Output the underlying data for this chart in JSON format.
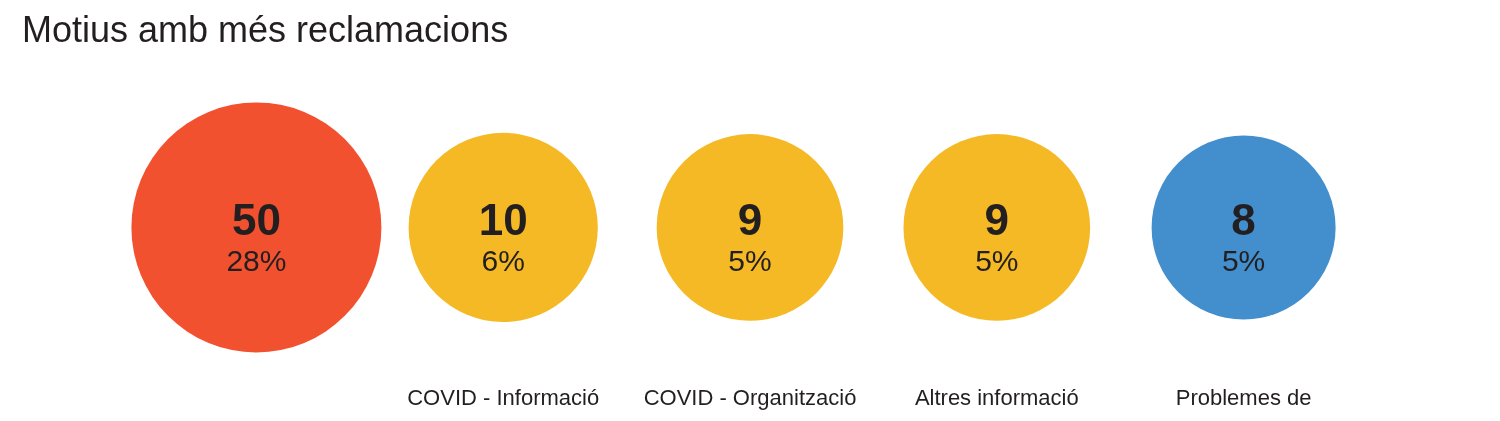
{
  "chart_data": {
    "type": "other",
    "title": "Motius amb més reclamacions",
    "categories": [
      null,
      "COVID - Informació",
      "COVID - Organització",
      "Altres informació",
      "Problemes de"
    ],
    "values": [
      50,
      10,
      9,
      9,
      8
    ],
    "colors": [
      "#f2512f",
      "#f5b926",
      "#f5b926",
      "#f5b926",
      "#438fcd"
    ],
    "data_labels": true,
    "annotations": [
      "28%",
      "6%",
      "5%",
      "5%",
      "5%"
    ]
  }
}
